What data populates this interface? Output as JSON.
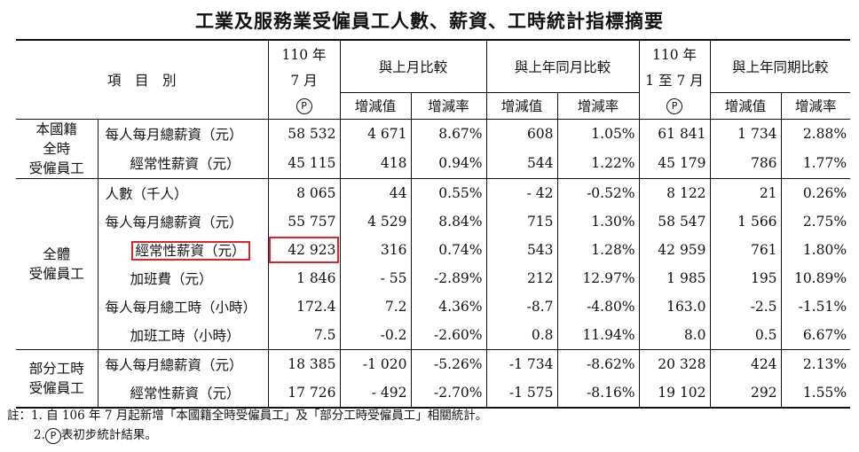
{
  "title": "工業及服務業受僱員工人數、薪資、工時統計指標摘要",
  "header": {
    "item": "項　目　別",
    "col_month_line1": "110 年",
    "col_month_line2": "7 月",
    "col_cum_line1": "110 年",
    "col_cum_line2": "1 至 7 月",
    "prelim_mark": "P",
    "group_mom": "與上月比較",
    "group_yoy": "與上年同月比較",
    "group_cum": "與上年同期比較",
    "sub_change": "增減值",
    "sub_rate": "增減率"
  },
  "groups": [
    {
      "label": [
        "本國籍",
        "全時",
        "受僱員工"
      ],
      "rows": [
        {
          "item": "每人每月總薪資（元）",
          "indent": false,
          "cells": [
            "58 532",
            "4 671",
            "8.67%",
            "608",
            "1.05%",
            "61 841",
            "1 734",
            "2.88%"
          ]
        },
        {
          "item": "經常性薪資（元）",
          "indent": true,
          "cells": [
            "45 115",
            "418",
            "0.94%",
            "544",
            "1.22%",
            "45 179",
            "786",
            "1.77%"
          ]
        }
      ]
    },
    {
      "label": [
        "全體",
        "受僱員工"
      ],
      "rows": [
        {
          "item": "人數（千人）",
          "indent": false,
          "cells": [
            "8 065",
            "44",
            "0.55%",
            "- 42",
            "-0.52%",
            "8 122",
            "21",
            "0.26%"
          ]
        },
        {
          "item": "每人每月總薪資（元）",
          "indent": false,
          "cells": [
            "55 757",
            "4 529",
            "8.84%",
            "715",
            "1.30%",
            "58 547",
            "1 566",
            "2.75%"
          ]
        },
        {
          "item": "經常性薪資（元）",
          "indent": true,
          "highlight": true,
          "cells": [
            "42 923",
            "316",
            "0.74%",
            "543",
            "1.28%",
            "42 959",
            "761",
            "1.80%"
          ]
        },
        {
          "item": "加班費（元）",
          "indent": true,
          "cells": [
            "1 846",
            "- 55",
            "-2.89%",
            "212",
            "12.97%",
            "1 985",
            "195",
            "10.89%"
          ]
        },
        {
          "item": "每人每月總工時（小時）",
          "indent": false,
          "cells": [
            "172.4",
            "7.2",
            "4.36%",
            "-8.7",
            "-4.80%",
            "163.0",
            "-2.5",
            "-1.51%"
          ]
        },
        {
          "item": "加班工時（小時）",
          "indent": true,
          "cells": [
            "7.5",
            "-0.2",
            "-2.60%",
            "0.8",
            "11.94%",
            "8.0",
            "0.5",
            "6.67%"
          ]
        }
      ]
    },
    {
      "label": [
        "部分工時",
        "受僱員工"
      ],
      "rows": [
        {
          "item": "每人每月總薪資（元）",
          "indent": false,
          "cells": [
            "18 385",
            "-1 020",
            "-5.26%",
            "-1 734",
            "-8.62%",
            "20 328",
            "424",
            "2.13%"
          ]
        },
        {
          "item": "經常性薪資（元）",
          "indent": true,
          "cells": [
            "17 726",
            "- 492",
            "-2.70%",
            "-1 575",
            "-8.16%",
            "19 102",
            "292",
            "1.55%"
          ]
        }
      ]
    }
  ],
  "notes": {
    "note1": "註：1. 自 106 年 7 月起新增「本國籍全時受僱員工」及「部分工時受僱員工」相關統計。",
    "note2_num": "2.",
    "note2_mark": "P",
    "note2_text": "表初步統計結果。"
  },
  "colors": {
    "highlight_border": "#d9262c"
  }
}
